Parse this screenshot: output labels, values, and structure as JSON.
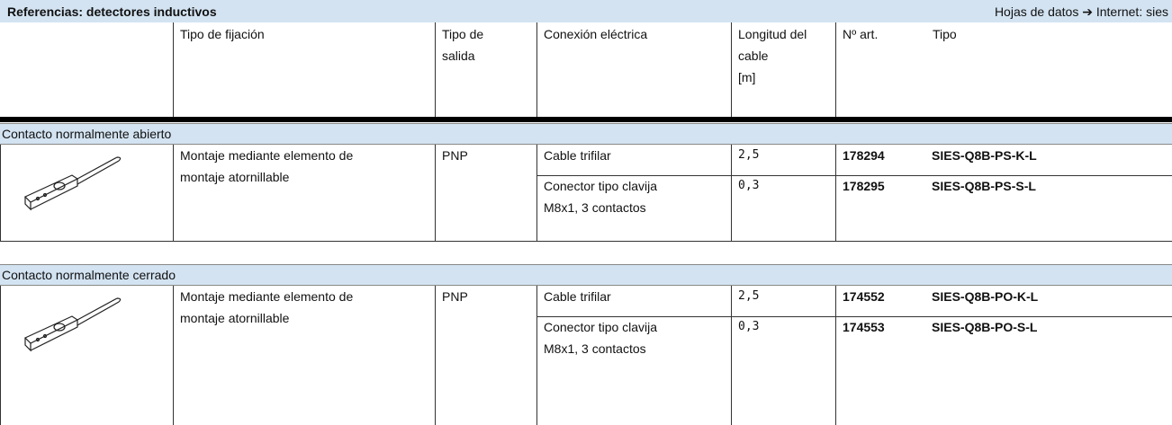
{
  "header": {
    "title": "Referencias: detectores inductivos",
    "link": "Hojas de datos ➔ Internet: sies"
  },
  "columns": [
    [
      "Tipo de fijación"
    ],
    [
      "Tipo de",
      "salida"
    ],
    [
      "Conexión eléctrica"
    ],
    [
      "Longitud del",
      "cable",
      "[m]"
    ],
    [
      "Nº art."
    ],
    [
      "Tipo"
    ]
  ],
  "sections": [
    {
      "title": "Contacto normalmente abierto",
      "fixing": [
        "Montaje mediante elemento de",
        "montaje atornillable"
      ],
      "output": "PNP",
      "rows": [
        {
          "connection": [
            "Cable trifilar"
          ],
          "cable_length": "2,5",
          "part_number": "178294",
          "type": "SIES-Q8B-PS-K-L"
        },
        {
          "connection": [
            "Conector tipo clavija",
            "M8x1, 3 contactos"
          ],
          "cable_length": "0,3",
          "part_number": "178295",
          "type": "SIES-Q8B-PS-S-L"
        }
      ]
    },
    {
      "title": "Contacto normalmente cerrado",
      "fixing": [
        "Montaje mediante elemento de",
        "montaje atornillable"
      ],
      "output": "PNP",
      "rows": [
        {
          "connection": [
            "Cable trifilar"
          ],
          "cable_length": "2,5",
          "part_number": "174552",
          "type": "SIES-Q8B-PO-K-L"
        },
        {
          "connection": [
            "Conector tipo clavija",
            "M8x1, 3 contactos"
          ],
          "cable_length": "0,3",
          "part_number": "174553",
          "type": "SIES-Q8B-PO-S-L"
        }
      ]
    }
  ]
}
